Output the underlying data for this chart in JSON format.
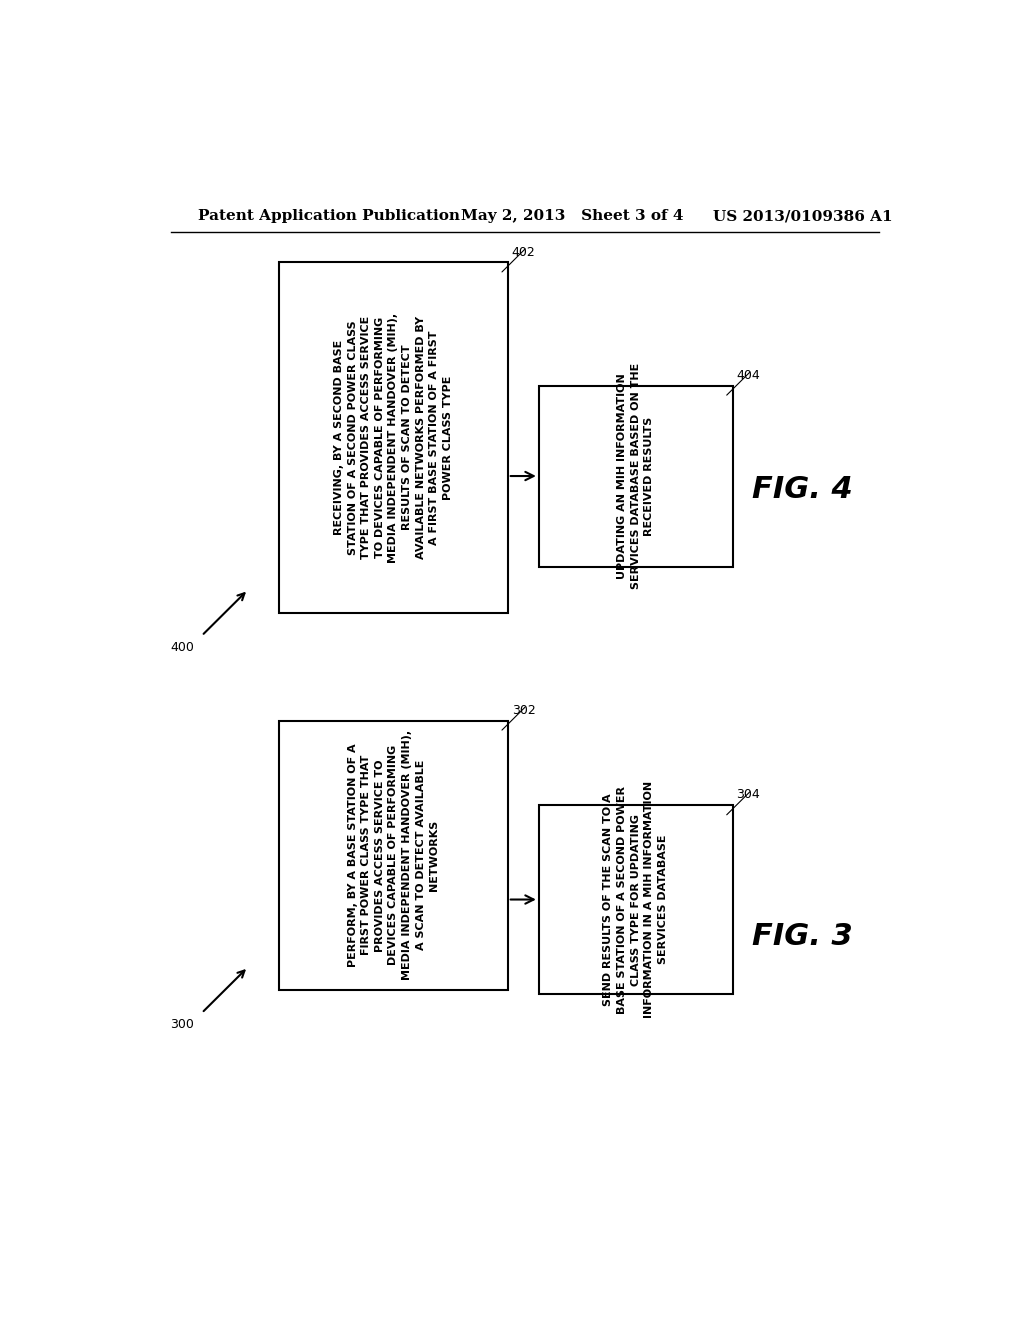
{
  "header_left": "Patent Application Publication",
  "header_mid": "May 2, 2013   Sheet 3 of 4",
  "header_right": "US 2013/0109386 A1",
  "fig4_label": "FIG. 4",
  "fig4_ref": "400",
  "fig4_box1_ref": "402",
  "fig4_box1_text": "RECEIVING, BY A SECOND BASE\nSTATION OF A SECOND POWER CLASS\nTYPE THAT PROVIDES ACCESS SERVICE\nTO DEVICES CAPABLE OF PERFORMING\nMEDIA INDEPENDENT HANDOVER (MIH),\nRESULTS OF SCAN TO DETECT\nAVAILABLE NETWORKS PERFORMED BY\nA FIRST BASE STATION OF A FIRST\nPOWER CLASS TYPE",
  "fig4_box2_ref": "404",
  "fig4_box2_text": "UPDATING AN MIH INFORMATION\nSERVICES DATABASE BASED ON THE\nRECEIVED RESULTS",
  "fig3_label": "FIG. 3",
  "fig3_ref": "300",
  "fig3_box1_ref": "302",
  "fig3_box1_text": "PERFORM, BY A BASE STATION OF A\nFIRST POWER CLASS TYPE THAT\nPROVIDES ACCESS SERVICE TO\nDEVICES CAPABLE OF PERFORMING\nMEDIA INDEPENDENT HANDOVER (MIH),\nA SCAN TO DETECT AVAILABLE\nNETWORKS",
  "fig3_box2_ref": "304",
  "fig3_box2_text": "SEND RESULTS OF THE SCAN TO A\nBASE STATION OF A SECOND POWER\nCLASS TYPE FOR UPDATING\nINFORMATION IN A MIH INFORMATION\nSERVICES DATABASE",
  "bg_color": "#ffffff",
  "box_edge_color": "#000000",
  "text_color": "#000000",
  "arrow_color": "#000000"
}
